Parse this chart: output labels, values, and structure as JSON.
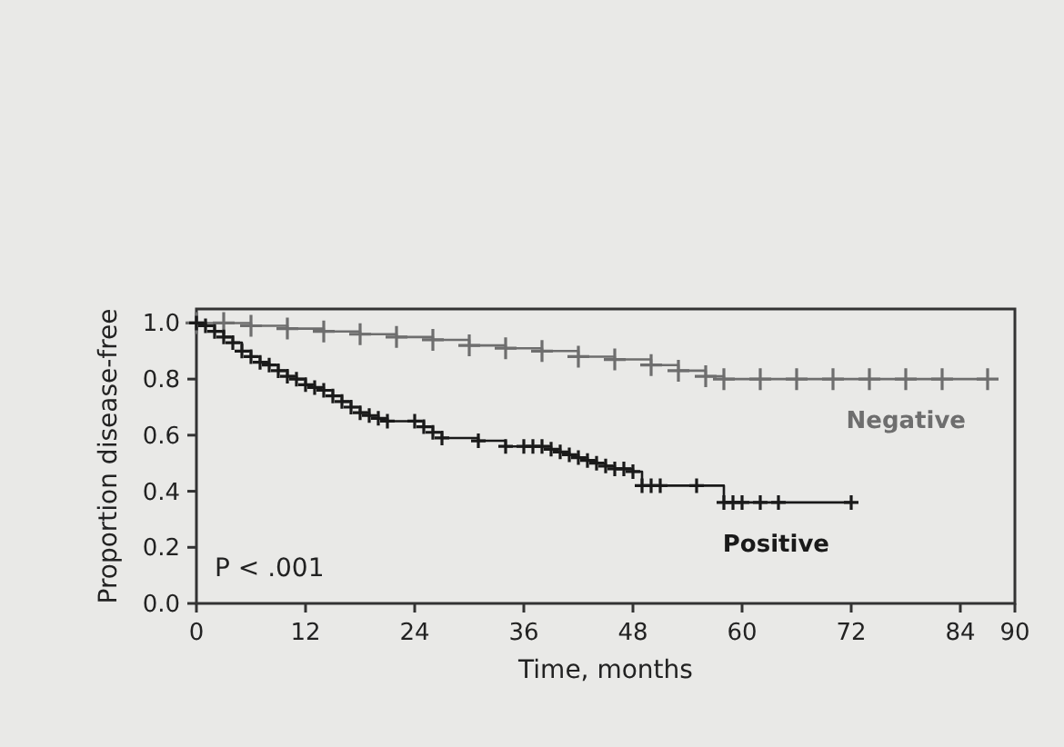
{
  "chart_data": {
    "type": "step",
    "xlabel": "Time, months",
    "ylabel": "Proportion disease-free",
    "xlim": [
      0,
      90
    ],
    "xticks": [
      0,
      12,
      24,
      36,
      48,
      60,
      72,
      84,
      90
    ],
    "ylim": [
      0,
      1.05
    ],
    "yticks": [
      {
        "value": 0,
        "label": "0.0"
      },
      {
        "value": 0.2,
        "label": "0.2"
      },
      {
        "value": 0.4,
        "label": "0.4"
      },
      {
        "value": 0.6,
        "label": "0.6"
      },
      {
        "value": 0.8,
        "label": "0.8"
      },
      {
        "value": 1,
        "label": "1.0"
      }
    ],
    "marker": "cross",
    "line_style": "solid",
    "grid": false,
    "annotations": [
      "P < .001"
    ],
    "series": [
      {
        "name": "Negative",
        "color": "#6e6e6e",
        "x": [
          0,
          3,
          6,
          10,
          14,
          18,
          22,
          26,
          30,
          34,
          38,
          42,
          46,
          50,
          53,
          56,
          58,
          62,
          66,
          70,
          74,
          78,
          82,
          87
        ],
        "values": [
          1.0,
          1.0,
          0.99,
          0.98,
          0.97,
          0.96,
          0.95,
          0.94,
          0.92,
          0.91,
          0.9,
          0.88,
          0.87,
          0.85,
          0.83,
          0.81,
          0.8,
          0.8,
          0.8,
          0.8,
          0.8,
          0.8,
          0.8,
          0.8
        ]
      },
      {
        "name": "Positive",
        "color": "#1a1a1a",
        "x": [
          0,
          1,
          2,
          3,
          4,
          5,
          6,
          7,
          8,
          9,
          10,
          11,
          12,
          13,
          14,
          15,
          16,
          17,
          18,
          19,
          20,
          21,
          24,
          25,
          26,
          27,
          31,
          34,
          36,
          37,
          38,
          39,
          40,
          41,
          42,
          43,
          44,
          45,
          46,
          47,
          48,
          49,
          50,
          51,
          55,
          58,
          59,
          60,
          62,
          64,
          72
        ],
        "values": [
          1.0,
          0.99,
          0.97,
          0.95,
          0.93,
          0.9,
          0.88,
          0.86,
          0.85,
          0.83,
          0.81,
          0.8,
          0.78,
          0.77,
          0.76,
          0.74,
          0.72,
          0.7,
          0.68,
          0.67,
          0.66,
          0.65,
          0.65,
          0.63,
          0.61,
          0.59,
          0.58,
          0.56,
          0.56,
          0.56,
          0.56,
          0.55,
          0.54,
          0.53,
          0.52,
          0.51,
          0.5,
          0.49,
          0.48,
          0.48,
          0.47,
          0.42,
          0.42,
          0.42,
          0.42,
          0.36,
          0.36,
          0.36,
          0.36,
          0.36,
          0.36
        ]
      }
    ]
  }
}
